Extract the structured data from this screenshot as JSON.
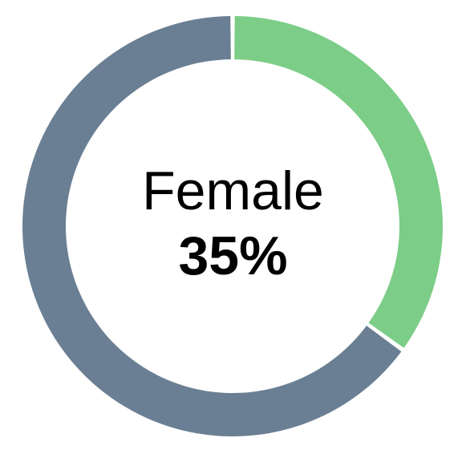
{
  "chart_data": {
    "type": "pie",
    "variant": "donut",
    "slices": [
      {
        "label": "Female",
        "value": 35,
        "color": "#7ccd87"
      },
      {
        "label": "",
        "value": 65,
        "color": "#6a7f93"
      }
    ],
    "center": {
      "category": "Female",
      "value": "35%"
    }
  }
}
